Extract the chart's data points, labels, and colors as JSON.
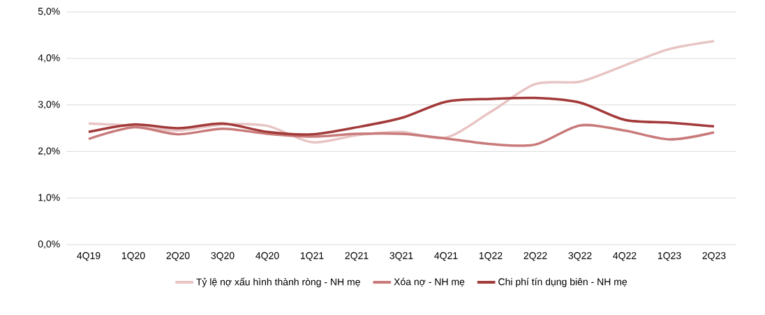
{
  "chart_data": {
    "type": "line",
    "categories": [
      "4Q19",
      "1Q20",
      "2Q20",
      "3Q20",
      "4Q20",
      "1Q21",
      "2Q21",
      "3Q21",
      "4Q21",
      "1Q22",
      "2Q22",
      "3Q22",
      "4Q22",
      "1Q23",
      "2Q23"
    ],
    "series": [
      {
        "name": "Tỷ lệ nợ xấu hình thành ròng - NH mẹ",
        "color": "#e8c4c4",
        "values": [
          2.6,
          2.55,
          2.45,
          2.58,
          2.55,
          2.2,
          2.35,
          2.42,
          2.3,
          2.85,
          3.45,
          3.5,
          3.85,
          4.2,
          4.37
        ]
      },
      {
        "name": "Xóa nợ - NH mẹ",
        "color": "#c97a7a",
        "values": [
          2.27,
          2.52,
          2.37,
          2.49,
          2.38,
          2.32,
          2.38,
          2.38,
          2.28,
          2.16,
          2.15,
          2.56,
          2.45,
          2.26,
          2.41
        ]
      },
      {
        "name": "Chi phí tín dụng biên - NH mẹ",
        "color": "#a33a3a",
        "values": [
          2.42,
          2.58,
          2.5,
          2.6,
          2.42,
          2.37,
          2.52,
          2.72,
          3.07,
          3.13,
          3.15,
          3.05,
          2.68,
          2.62,
          2.54
        ]
      }
    ],
    "ylim": [
      0,
      5
    ],
    "yticks": [
      {
        "value": 0,
        "label": "0,0%"
      },
      {
        "value": 1,
        "label": "1,0%"
      },
      {
        "value": 2,
        "label": "2,0%"
      },
      {
        "value": 3,
        "label": "3,0%"
      },
      {
        "value": 4,
        "label": "4,0%"
      },
      {
        "value": 5,
        "label": "5,0%"
      }
    ],
    "grid": "y",
    "legend": "bottom",
    "marker": "none",
    "line_style": "solid"
  }
}
